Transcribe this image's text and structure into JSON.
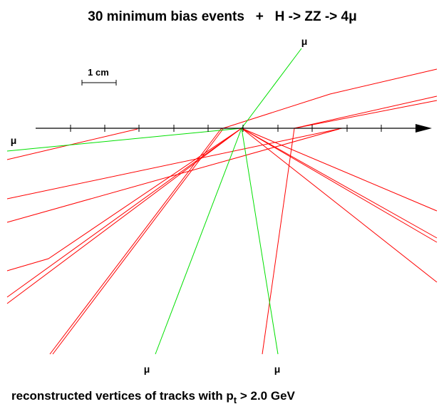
{
  "title": "30 minimum bias events   +   H -> ZZ -> 4μ",
  "caption_main": "reconstructed vertices of tracks with p",
  "caption_sub": "t",
  "caption_tail": " > 2.0 GeV",
  "scale_label": "1 cm",
  "muon_label": "μ",
  "colors": {
    "minimum_bias_track": "#ff0000",
    "muon_track": "#00e000",
    "axis": "#000000"
  }
}
